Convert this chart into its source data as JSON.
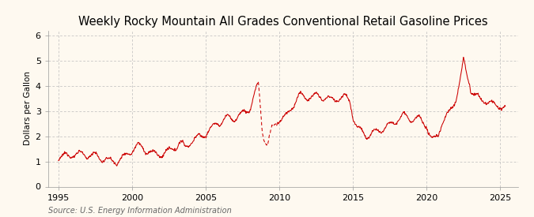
{
  "title": "Weekly Rocky Mountain All Grades Conventional Retail Gasoline Prices",
  "ylabel": "Dollars per Gallon",
  "source": "Source: U.S. Energy Information Administration",
  "background_color": "#fef9f0",
  "plot_bg_color": "#fef9f0",
  "line_color": "#cc0000",
  "grid_color": "#bbbbbb",
  "xlim": [
    1994.3,
    2026.2
  ],
  "ylim": [
    0,
    6.2
  ],
  "yticks": [
    0,
    1,
    2,
    3,
    4,
    5,
    6
  ],
  "xticks": [
    1995,
    2000,
    2005,
    2010,
    2015,
    2020,
    2025
  ],
  "title_fontsize": 10.5,
  "label_fontsize": 7.5,
  "tick_fontsize": 8,
  "source_fontsize": 7,
  "dashed_start": 2008.55,
  "dashed_end": 2009.85
}
